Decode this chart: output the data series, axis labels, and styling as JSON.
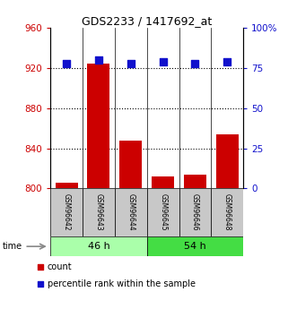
{
  "title": "GDS2233 / 1417692_at",
  "samples": [
    "GSM96642",
    "GSM96643",
    "GSM96644",
    "GSM96645",
    "GSM96646",
    "GSM96648"
  ],
  "counts": [
    806,
    924,
    848,
    812,
    814,
    854
  ],
  "percentiles": [
    78,
    80,
    78,
    79,
    78,
    79
  ],
  "groups": [
    {
      "label": "46 h",
      "n": 3,
      "color": "#aaffaa"
    },
    {
      "label": "54 h",
      "n": 3,
      "color": "#44dd44"
    }
  ],
  "ylim_left": [
    800,
    960
  ],
  "ylim_right": [
    0,
    100
  ],
  "yticks_left": [
    800,
    840,
    880,
    920,
    960
  ],
  "yticks_right": [
    0,
    25,
    50,
    75,
    100
  ],
  "bar_color": "#CC0000",
  "dot_color": "#1111CC",
  "label_color_left": "#CC0000",
  "label_color_right": "#1111CC",
  "legend_count_label": "count",
  "legend_percentile_label": "percentile rank within the sample",
  "bar_width": 0.7,
  "dot_size": 30,
  "sample_box_color": "#C8C8C8"
}
